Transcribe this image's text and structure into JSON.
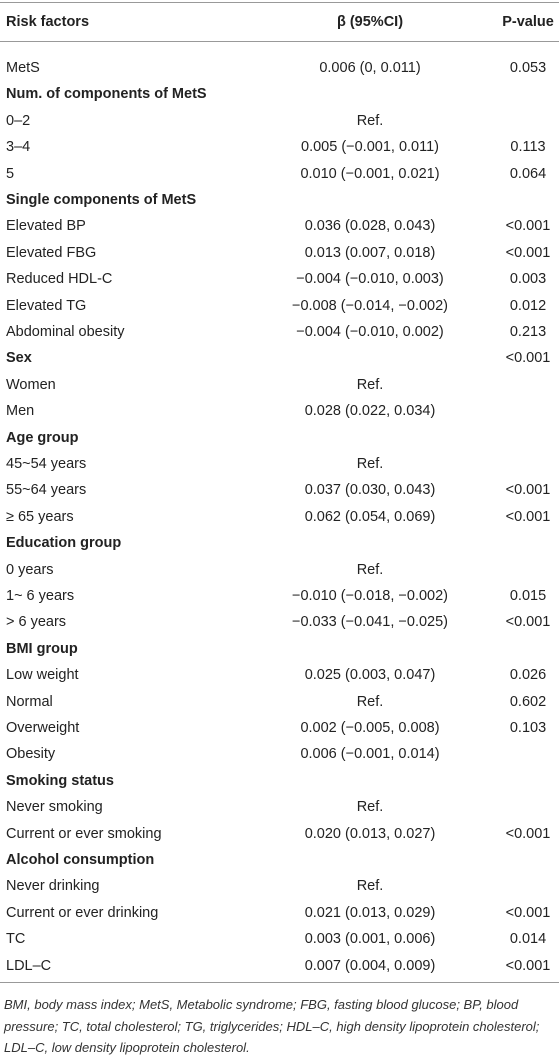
{
  "table": {
    "header": [
      "Risk factors",
      "β (95%CI)",
      "P-value"
    ],
    "rows": [
      {
        "factor": "MetS",
        "beta": "0.006 (0, 0.011)",
        "p": "0.053"
      },
      {
        "section": "Num. of components of MetS"
      },
      {
        "factor": "0–2",
        "beta": "Ref."
      },
      {
        "factor": "3–4",
        "beta": "0.005 (−0.001, 0.011)",
        "p": "0.113"
      },
      {
        "factor": "5",
        "beta": "0.010 (−0.001, 0.021)",
        "p": "0.064"
      },
      {
        "section": "Single components of MetS"
      },
      {
        "factor": "Elevated BP",
        "beta": "0.036 (0.028, 0.043)",
        "p": "<0.001"
      },
      {
        "factor": "Elevated FBG",
        "beta": "0.013 (0.007, 0.018)",
        "p": "<0.001"
      },
      {
        "factor": "Reduced HDL-C",
        "beta": "−0.004 (−0.010, 0.003)",
        "p": "0.003"
      },
      {
        "factor": "Elevated TG",
        "beta": "−0.008 (−0.014, −0.002)",
        "p": "0.012"
      },
      {
        "factor": "Abdominal obesity",
        "beta": "−0.004 (−0.010, 0.002)",
        "p": "0.213"
      },
      {
        "section": "Sex",
        "p": "<0.001"
      },
      {
        "factor": "Women",
        "beta": "Ref."
      },
      {
        "factor": "Men",
        "beta": "0.028 (0.022, 0.034)"
      },
      {
        "section": "Age group"
      },
      {
        "factor": "45~54 years",
        "beta": "Ref."
      },
      {
        "factor": "55~64 years",
        "beta": "0.037 (0.030, 0.043)",
        "p": "<0.001"
      },
      {
        "factor": "≥ 65 years",
        "beta": "0.062 (0.054, 0.069)",
        "p": "<0.001"
      },
      {
        "section": "Education group"
      },
      {
        "factor": "0 years",
        "beta": "Ref."
      },
      {
        "factor": "1~ 6 years",
        "beta": "−0.010 (−0.018, −0.002)",
        "p": "0.015"
      },
      {
        "factor": "> 6 years",
        "beta": "−0.033 (−0.041, −0.025)",
        "p": "<0.001"
      },
      {
        "section": "BMI group"
      },
      {
        "factor": "Low weight",
        "beta": "0.025 (0.003, 0.047)",
        "p": "0.026"
      },
      {
        "factor": "Normal",
        "beta": "Ref.",
        "p": "0.602"
      },
      {
        "factor": "Overweight",
        "beta": "0.002 (−0.005, 0.008)",
        "p": "0.103"
      },
      {
        "factor": "Obesity",
        "beta": "0.006 (−0.001, 0.014)"
      },
      {
        "section": "Smoking status"
      },
      {
        "factor": "Never smoking",
        "beta": "Ref."
      },
      {
        "factor": "Current or ever smoking",
        "beta": "0.020 (0.013, 0.027)",
        "p": "<0.001"
      },
      {
        "section": "Alcohol consumption"
      },
      {
        "factor": "Never drinking",
        "beta": "Ref."
      },
      {
        "factor": "Current or ever drinking",
        "beta": "0.021 (0.013, 0.029)",
        "p": "<0.001"
      },
      {
        "factor": "TC",
        "beta": "0.003 (0.001, 0.006)",
        "p": "0.014"
      },
      {
        "factor": "LDL–C",
        "beta": "0.007 (0.004, 0.009)",
        "p": "<0.001"
      }
    ]
  },
  "footnote": "BMI, body mass index; MetS, Metabolic syndrome; FBG, fasting blood glucose; BP, blood pressure; TC, total cholesterol; TG, triglycerides; HDL–C, high density lipoprotein cholesterol; LDL–C, low density lipoprotein cholesterol."
}
